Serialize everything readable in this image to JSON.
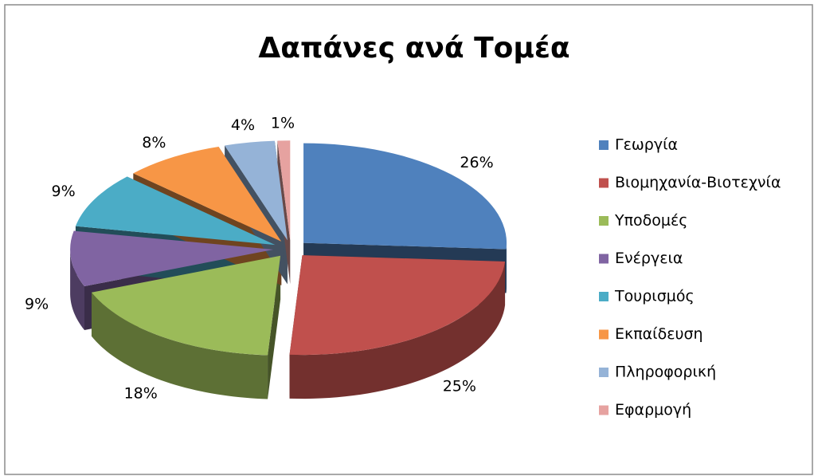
{
  "chart_data": {
    "type": "pie",
    "title": "Δαπάνες ανά Τομέα",
    "categories": [
      "Γεωργία",
      "Βιομηχανία-Βιοτεχνία",
      "Υποδομές",
      "Ενέργεια",
      "Τουρισμός",
      "Εκπαίδευση",
      "Πληροφορική",
      "Εφαρμογή"
    ],
    "values": [
      26,
      25,
      18,
      9,
      9,
      8,
      4,
      1
    ],
    "value_labels": [
      "26%",
      "25%",
      "18%",
      "9%",
      "9%",
      "8%",
      "4%",
      "1%"
    ],
    "colors": [
      "#4f81bd",
      "#c0504d",
      "#9bbb59",
      "#8064a2",
      "#4bacc6",
      "#f79646",
      "#95b3d7",
      "#e6a2a0"
    ],
    "legend": "right"
  }
}
